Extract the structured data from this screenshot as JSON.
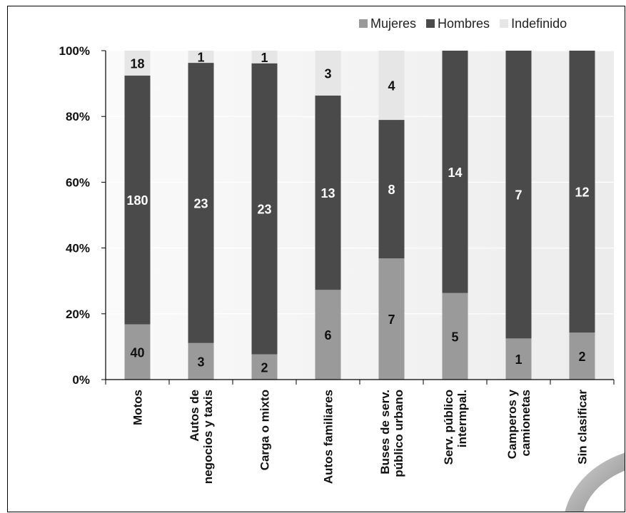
{
  "chart_data": {
    "type": "bar",
    "stacked": "percent",
    "categories": [
      [
        "Motos"
      ],
      [
        "Autos de",
        "negocios y taxis"
      ],
      [
        "Carga o mixto"
      ],
      [
        "Autos familiares"
      ],
      [
        "Buses de serv.",
        "público urbano"
      ],
      [
        "Serv. público",
        "intermpal."
      ],
      [
        "Camperos y",
        "camionetas"
      ],
      [
        "Sin clasificar"
      ]
    ],
    "series": [
      {
        "name": "Mujeres",
        "color": "#9a9a9a",
        "values": [
          40,
          3,
          2,
          6,
          7,
          5,
          1,
          2
        ]
      },
      {
        "name": "Hombres",
        "color": "#4a4a4a",
        "values": [
          180,
          23,
          23,
          13,
          8,
          14,
          7,
          12
        ]
      },
      {
        "name": "Indefinido",
        "color": "#e6e6e6",
        "values": [
          18,
          1,
          1,
          3,
          4,
          0,
          0,
          0
        ]
      }
    ],
    "y_ticks": [
      "0%",
      "20%",
      "40%",
      "60%",
      "80%",
      "100%"
    ],
    "ylim": [
      0,
      100
    ],
    "legend_position": "top-right",
    "grid": true
  }
}
